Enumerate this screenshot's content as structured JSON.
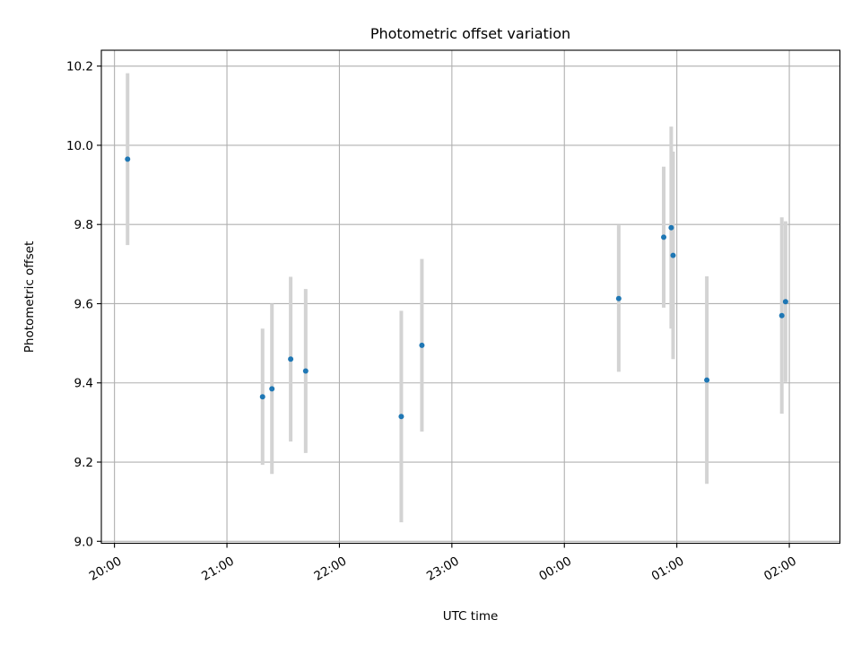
{
  "chart_data": {
    "type": "scatter",
    "title": "Photometric offset variation",
    "xlabel": "UTC time",
    "ylabel": "Photometric offset",
    "x_axis_kind": "time",
    "x_start_label": "20:00",
    "xlim": [
      "19:53",
      "02:27"
    ],
    "ylim": [
      8.995,
      10.24
    ],
    "grid": true,
    "x_ticks": [
      {
        "label": "20:00",
        "time": "20:00"
      },
      {
        "label": "21:00",
        "time": "21:00"
      },
      {
        "label": "22:00",
        "time": "22:00"
      },
      {
        "label": "23:00",
        "time": "23:00"
      },
      {
        "label": "00:00",
        "time": "00:00"
      },
      {
        "label": "01:00",
        "time": "01:00"
      },
      {
        "label": "02:00",
        "time": "02:00"
      }
    ],
    "y_ticks": [
      {
        "label": "9.0",
        "value": 9.0
      },
      {
        "label": "9.2",
        "value": 9.2
      },
      {
        "label": "9.4",
        "value": 9.4
      },
      {
        "label": "9.6",
        "value": 9.6
      },
      {
        "label": "9.8",
        "value": 9.8
      },
      {
        "label": "10.0",
        "value": 10.0
      },
      {
        "label": "10.2",
        "value": 10.2
      }
    ],
    "series": [
      {
        "marker_color": "#1f77b4",
        "errorbar_color": "#d3d3d3",
        "points": [
          {
            "time": "20:07",
            "y": 9.965,
            "yerr": 0.217
          },
          {
            "time": "21:19",
            "y": 9.365,
            "yerr": 0.172
          },
          {
            "time": "21:24",
            "y": 9.385,
            "yerr": 0.215
          },
          {
            "time": "21:34",
            "y": 9.46,
            "yerr": 0.208
          },
          {
            "time": "21:42",
            "y": 9.43,
            "yerr": 0.207
          },
          {
            "time": "22:33",
            "y": 9.315,
            "yerr": 0.267
          },
          {
            "time": "22:44",
            "y": 9.495,
            "yerr": 0.218
          },
          {
            "time": "00:29",
            "y": 9.613,
            "yerr": 0.185
          },
          {
            "time": "00:53",
            "y": 9.768,
            "yerr": 0.178
          },
          {
            "time": "00:57",
            "y": 9.792,
            "yerr": 0.255
          },
          {
            "time": "00:58",
            "y": 9.722,
            "yerr": 0.262
          },
          {
            "time": "01:16",
            "y": 9.407,
            "yerr": 0.262
          },
          {
            "time": "01:56",
            "y": 9.57,
            "yerr": 0.248
          },
          {
            "time": "01:58",
            "y": 9.605,
            "yerr": 0.203
          }
        ]
      }
    ]
  }
}
